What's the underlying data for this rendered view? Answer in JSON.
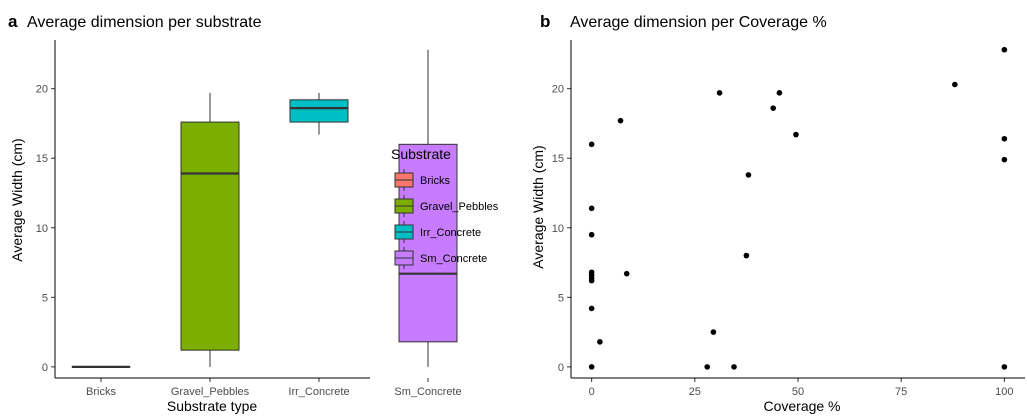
{
  "panels": {
    "a": {
      "letter": "a"
    },
    "b": {
      "letter": "b"
    }
  },
  "chart_data": [
    {
      "type": "box",
      "title": "Average dimension per substrate",
      "xlabel": "Substrate type",
      "ylabel": "Average Width (cm)",
      "ylim": [
        -0.8,
        23.5
      ],
      "yticks": [
        0,
        5,
        10,
        15,
        20
      ],
      "categories": [
        "Bricks",
        "Gravel_Pebbles",
        "Irr_Concrete",
        "Sm_Concrete"
      ],
      "boxes": [
        {
          "category": "Bricks",
          "min": 0,
          "q1": 0,
          "median": 0,
          "q3": 0,
          "max": 0,
          "color": "#F8766D"
        },
        {
          "category": "Gravel_Pebbles",
          "min": 0,
          "q1": 1.2,
          "median": 13.9,
          "q3": 17.6,
          "max": 19.7,
          "color": "#7CAE00"
        },
        {
          "category": "Irr_Concrete",
          "min": 16.7,
          "q1": 17.6,
          "median": 18.6,
          "q3": 19.2,
          "max": 19.7,
          "color": "#00BFC4"
        },
        {
          "category": "Sm_Concrete",
          "min": 0,
          "q1": 1.8,
          "median": 6.7,
          "q3": 16.0,
          "max": 22.8,
          "color": "#C77CFF"
        }
      ],
      "legend": {
        "title": "Substrate",
        "placement": "right",
        "entries": [
          {
            "label": "Bricks",
            "color": "#F8766D"
          },
          {
            "label": "Gravel_Pebbles",
            "color": "#7CAE00"
          },
          {
            "label": "Irr_Concrete",
            "color": "#00BFC4"
          },
          {
            "label": "Sm_Concrete",
            "color": "#C77CFF"
          }
        ]
      },
      "grid": false
    },
    {
      "type": "scatter",
      "title": "Average dimension per Coverage %",
      "xlabel": "Coverage %",
      "ylabel": "Average Width (cm)",
      "xlim": [
        -5,
        105
      ],
      "ylim": [
        -0.8,
        23.5
      ],
      "xticks": [
        0,
        25,
        50,
        75,
        100
      ],
      "yticks": [
        0,
        5,
        10,
        15,
        20
      ],
      "points": [
        {
          "x": 0,
          "y": 16.0
        },
        {
          "x": 0,
          "y": 11.4
        },
        {
          "x": 0,
          "y": 9.5
        },
        {
          "x": 0,
          "y": 6.8
        },
        {
          "x": 0,
          "y": 6.6
        },
        {
          "x": 0,
          "y": 6.4
        },
        {
          "x": 0,
          "y": 6.2
        },
        {
          "x": 0,
          "y": 4.2
        },
        {
          "x": 0,
          "y": 0
        },
        {
          "x": 2,
          "y": 1.8
        },
        {
          "x": 7,
          "y": 17.7
        },
        {
          "x": 8.5,
          "y": 6.7
        },
        {
          "x": 28,
          "y": 0
        },
        {
          "x": 29.5,
          "y": 2.5
        },
        {
          "x": 31,
          "y": 19.7
        },
        {
          "x": 34.5,
          "y": 0
        },
        {
          "x": 37.5,
          "y": 8.0
        },
        {
          "x": 38,
          "y": 13.8
        },
        {
          "x": 44,
          "y": 18.6
        },
        {
          "x": 45.5,
          "y": 19.7
        },
        {
          "x": 49.5,
          "y": 16.7
        },
        {
          "x": 88,
          "y": 20.3
        },
        {
          "x": 100,
          "y": 22.8
        },
        {
          "x": 100,
          "y": 16.4
        },
        {
          "x": 100,
          "y": 14.9
        },
        {
          "x": 100,
          "y": 0
        }
      ],
      "point_color": "#000000",
      "grid": false
    }
  ]
}
